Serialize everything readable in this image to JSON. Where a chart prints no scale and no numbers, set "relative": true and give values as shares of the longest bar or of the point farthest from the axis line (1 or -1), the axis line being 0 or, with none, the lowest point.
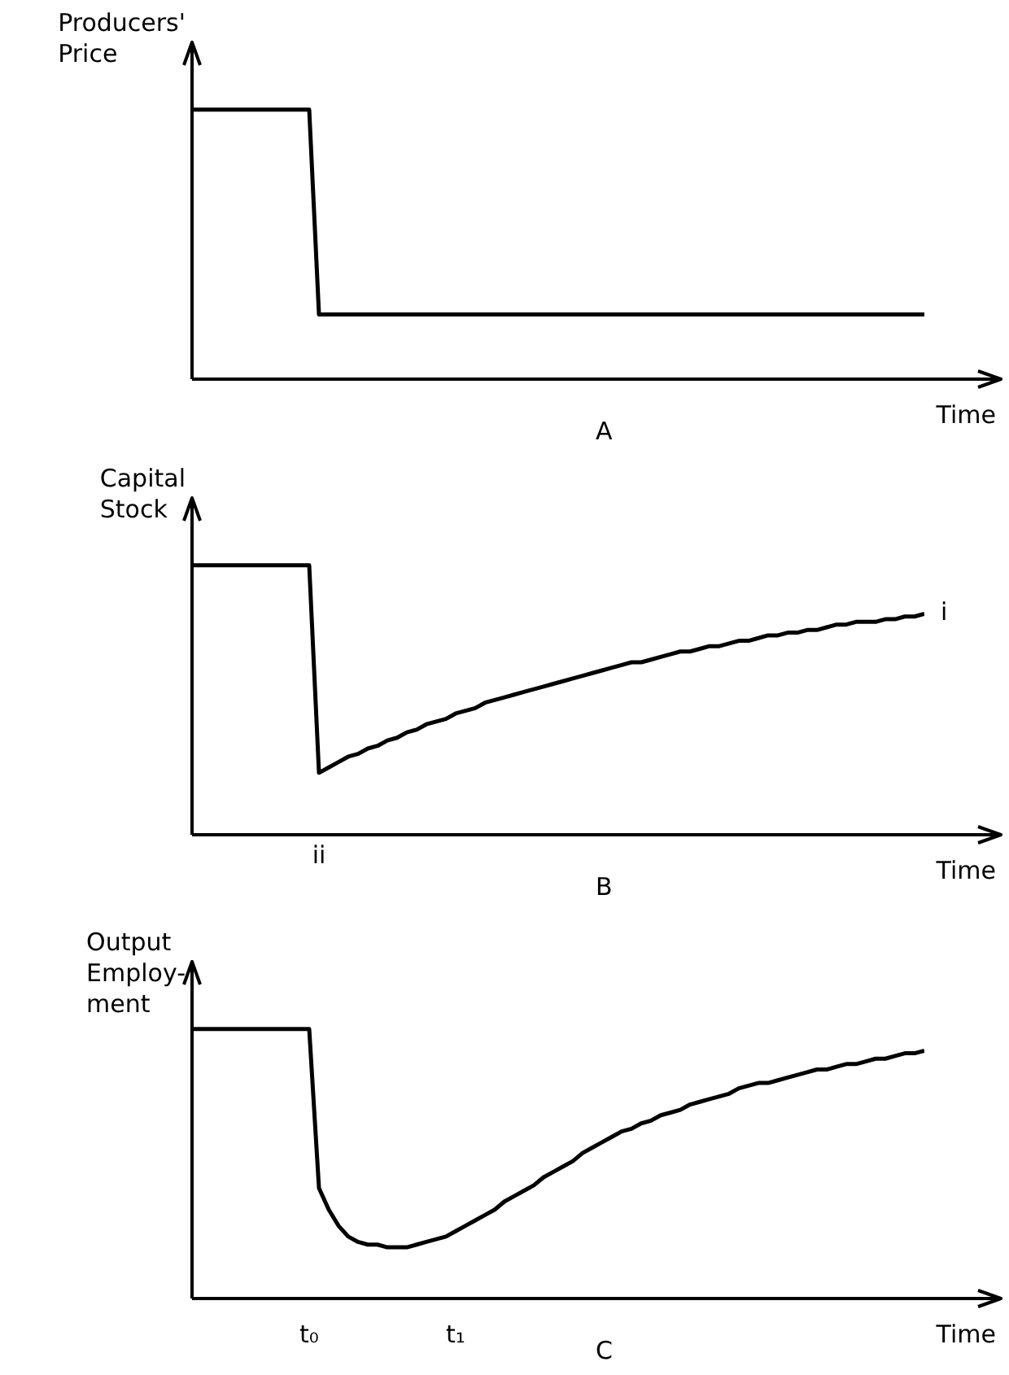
{
  "chart_data": [
    {
      "type": "line",
      "title": "A",
      "xlabel": "Time",
      "ylabel": "Producers'\nPrice",
      "relative": true,
      "legend": false,
      "grid": false,
      "categories": [
        null,
        null,
        null,
        null,
        null,
        null,
        null,
        null,
        null,
        null,
        null,
        null,
        null,
        null,
        null,
        null,
        null,
        null,
        null,
        null,
        null,
        null,
        null,
        null,
        null,
        null,
        null,
        null,
        null,
        null,
        null,
        null,
        null,
        null,
        null,
        null,
        null,
        null,
        null,
        null,
        null,
        null,
        null,
        null,
        null,
        null,
        null,
        null,
        null,
        null,
        null,
        null,
        null,
        null,
        null,
        null,
        null,
        null,
        null,
        null,
        null,
        null,
        null,
        null,
        null,
        null,
        null,
        null,
        null,
        null,
        null,
        null,
        null,
        null,
        null,
        null
      ],
      "series": [
        {
          "color": "#000000",
          "values": [
            1,
            1,
            1,
            1,
            1,
            1,
            1,
            1,
            1,
            1,
            1,
            1,
            1,
            0.24,
            0.24,
            0.24,
            0.24,
            0.24,
            0.24,
            0.24,
            0.24,
            0.24,
            0.24,
            0.24,
            0.24,
            0.24,
            0.24,
            0.24,
            0.24,
            0.24,
            0.24,
            0.24,
            0.24,
            0.24,
            0.24,
            0.24,
            0.24,
            0.24,
            0.24,
            0.24,
            0.24,
            0.24,
            0.24,
            0.24,
            0.24,
            0.24,
            0.24,
            0.24,
            0.24,
            0.24,
            0.24,
            0.24,
            0.24,
            0.24,
            0.24,
            0.24,
            0.24,
            0.24,
            0.24,
            0.24,
            0.24,
            0.24,
            0.24,
            0.24,
            0.24,
            0.24,
            0.24,
            0.24,
            0.24,
            0.24,
            0.24,
            0.24,
            0.24,
            0.24,
            0.24,
            0.24
          ]
        }
      ]
    },
    {
      "type": "line",
      "title": "B",
      "xlabel": "Time",
      "ylabel": "Capital\nStock",
      "relative": true,
      "legend": false,
      "grid": false,
      "annotations": [
        "i",
        {
          "text": "ii",
          "y": 0.23
        }
      ],
      "categories": [
        null,
        null,
        null,
        null,
        null,
        null,
        null,
        null,
        null,
        null,
        null,
        null,
        null,
        null,
        null,
        null,
        null,
        null,
        null,
        null,
        null,
        null,
        null,
        null,
        null,
        null,
        null,
        null,
        null,
        null,
        null,
        null,
        null,
        null,
        null,
        null,
        null,
        null,
        null,
        null,
        null,
        null,
        null,
        null,
        null,
        null,
        null,
        null,
        null,
        null,
        null,
        null,
        null,
        null,
        null,
        null,
        null,
        null,
        null,
        null,
        null,
        null,
        null,
        null,
        null,
        null,
        null,
        null,
        null,
        null,
        null,
        null,
        null,
        null,
        null,
        null
      ],
      "series": [
        {
          "color": "#000000",
          "values": [
            1,
            1,
            1,
            1,
            1,
            1,
            1,
            1,
            1,
            1,
            1,
            1,
            1,
            0.23,
            0.25,
            0.27,
            0.29,
            0.3,
            0.32,
            0.33,
            0.35,
            0.36,
            0.38,
            0.39,
            0.41,
            0.42,
            0.43,
            0.45,
            0.46,
            0.47,
            0.49,
            0.5,
            0.51,
            0.52,
            0.53,
            0.54,
            0.55,
            0.56,
            0.57,
            0.58,
            0.59,
            0.6,
            0.61,
            0.62,
            0.63,
            0.64,
            0.64,
            0.65,
            0.66,
            0.67,
            0.68,
            0.68,
            0.69,
            0.7,
            0.7,
            0.71,
            0.72,
            0.72,
            0.73,
            0.74,
            0.74,
            0.75,
            0.75,
            0.76,
            0.76,
            0.77,
            0.78,
            0.78,
            0.79,
            0.79,
            0.79,
            0.8,
            0.8,
            0.81,
            0.81,
            0.82
          ]
        }
      ]
    },
    {
      "type": "line",
      "title": "C",
      "xlabel": "Time",
      "ylabel": "Output\nEmploy-\nment",
      "relative": true,
      "legend": false,
      "grid": false,
      "categories": [
        null,
        null,
        null,
        null,
        null,
        null,
        null,
        null,
        null,
        null,
        null,
        null,
        "t₀",
        null,
        null,
        null,
        null,
        null,
        null,
        null,
        null,
        null,
        null,
        null,
        null,
        null,
        null,
        "t₁",
        null,
        null,
        null,
        null,
        null,
        null,
        null,
        null,
        null,
        null,
        null,
        null,
        null,
        null,
        null,
        null,
        null,
        null,
        null,
        null,
        null,
        null,
        null,
        null,
        null,
        null,
        null,
        null,
        null,
        null,
        null,
        null,
        null,
        null,
        null,
        null,
        null,
        null,
        null,
        null,
        null,
        null,
        null,
        null,
        null,
        null,
        null,
        null
      ],
      "series": [
        {
          "color": "#000000",
          "values": [
            1,
            1,
            1,
            1,
            1,
            1,
            1,
            1,
            1,
            1,
            1,
            1,
            1,
            0.41,
            0.33,
            0.27,
            0.23,
            0.21,
            0.2,
            0.2,
            0.19,
            0.19,
            0.19,
            0.2,
            0.21,
            0.22,
            0.23,
            0.25,
            0.27,
            0.29,
            0.31,
            0.33,
            0.36,
            0.38,
            0.4,
            0.42,
            0.45,
            0.47,
            0.49,
            0.51,
            0.54,
            0.56,
            0.58,
            0.6,
            0.62,
            0.63,
            0.65,
            0.66,
            0.68,
            0.69,
            0.7,
            0.72,
            0.73,
            0.74,
            0.75,
            0.76,
            0.78,
            0.79,
            0.8,
            0.8,
            0.81,
            0.82,
            0.83,
            0.84,
            0.85,
            0.85,
            0.86,
            0.87,
            0.87,
            0.88,
            0.89,
            0.89,
            0.9,
            0.91,
            0.91,
            0.92
          ]
        }
      ]
    }
  ]
}
